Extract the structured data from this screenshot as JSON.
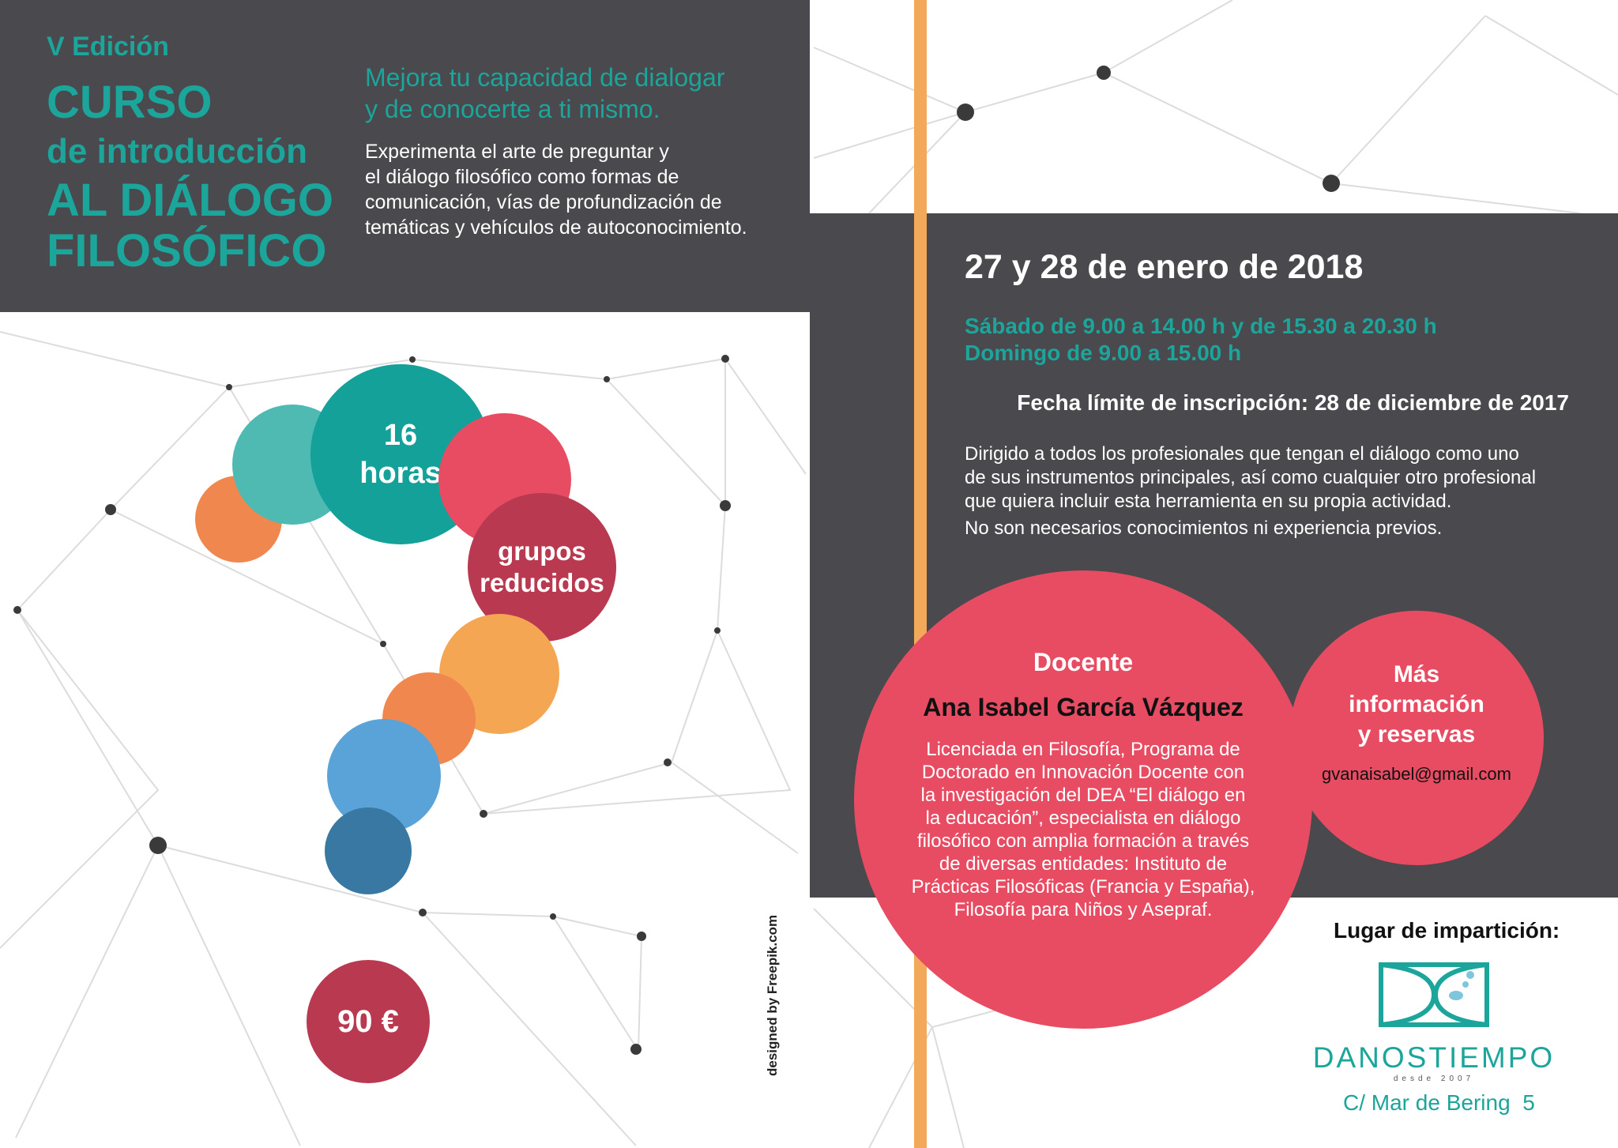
{
  "header": {
    "edition": "V Edición",
    "title_line1": "CURSO",
    "title_line2": "de introducción",
    "title_line3": "AL DIÁLOGO",
    "title_line4": "FILOSÓFICO",
    "tagline_line1": "Mejora tu capacidad de dialogar",
    "tagline_line2": "y de conocerte a ti mismo.",
    "description": [
      "Experimenta el arte de preguntar y",
      "el diálogo filosófico como formas de",
      "comunicación, vías de profundización de",
      "temáticas y vehículos de autoconocimiento."
    ]
  },
  "bubbles": {
    "hours_number": "16",
    "hours_label": "horas",
    "groups_line1": "grupos",
    "groups_line2": "reducidos",
    "price": "90 €"
  },
  "credit": "designed by Freepik.com",
  "schedule": {
    "dates": "27 y 28 de enero de 2018",
    "saturday": "Sábado de 9.00 a 14.00 h y de 15.30 a 20.30 h",
    "sunday": "Domingo de 9.00 a 15.00 h",
    "deadline": "Fecha límite de inscripción: 28 de diciembre de 2017",
    "audience": [
      "Dirigido a todos los profesionales que tengan el diálogo como uno",
      "de sus instrumentos principales, así como cualquier otro profesional",
      "que quiera incluir esta herramienta en su propia actividad."
    ],
    "prerequisites": "No son necesarios conocimientos ni experiencia previos."
  },
  "teacher": {
    "heading": "Docente",
    "name": "Ana Isabel García Vázquez",
    "bio": [
      "Licenciada en Filosofía, Programa de",
      "Doctorado en Innovación Docente con",
      "la investigación del DEA “El diálogo en",
      "la educación”, especialista en diálogo",
      "filosófico con amplia formación a través",
      "de diversas entidades: Instituto de",
      "Prácticas Filosóficas (Francia y España),",
      "Filosofía para Niños y Asepraf."
    ]
  },
  "info": {
    "line1": "Más",
    "line2": "información",
    "line3": "y reservas",
    "email": "gvanaisabel@gmail.com"
  },
  "venue": {
    "heading": "Lugar de impartición:",
    "logo_text": "DANOSTIEMPO",
    "logo_subtext": "desde 2007",
    "address": "C/ Mar de Bering  5"
  },
  "colors": {
    "dark": "#4a494d",
    "teal": "#1ba59b",
    "pink": "#e84c63",
    "crimson": "#b93a50",
    "orange": "#f0874f",
    "accent_bar": "#f3a95a",
    "blue": "#5aa3d8",
    "dark_blue": "#3878a3"
  }
}
